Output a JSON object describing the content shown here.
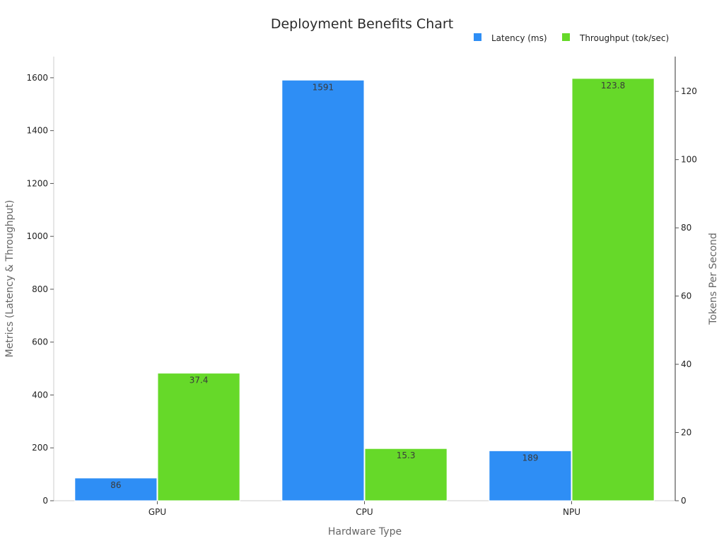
{
  "chart_data": {
    "type": "bar",
    "title": "Deployment Benefits Chart",
    "xlabel": "Hardware Type",
    "ylabel": "Metrics (Latency & Throughput)",
    "y2label": "Tokens Per Second",
    "categories": [
      "GPU",
      "CPU",
      "NPU"
    ],
    "series": [
      {
        "name": "Latency (ms)",
        "axis": "left",
        "color": "#2e8ef5",
        "values": [
          86,
          1591,
          189
        ],
        "labels": [
          "86",
          "1591",
          "189"
        ]
      },
      {
        "name": "Throughput (tok/sec)",
        "axis": "right",
        "color": "#66d929",
        "values": [
          37.4,
          15.3,
          123.8
        ],
        "labels": [
          "37.4",
          "15.3",
          "123.8"
        ]
      }
    ],
    "ylim": [
      0,
      1680
    ],
    "y2lim": [
      0,
      130.2
    ],
    "yticks": [
      0,
      200,
      400,
      600,
      800,
      1000,
      1200,
      1400,
      1600
    ],
    "y2ticks": [
      0,
      20,
      40,
      60,
      80,
      100,
      120
    ],
    "grid": false,
    "legend_position": "top-right"
  }
}
